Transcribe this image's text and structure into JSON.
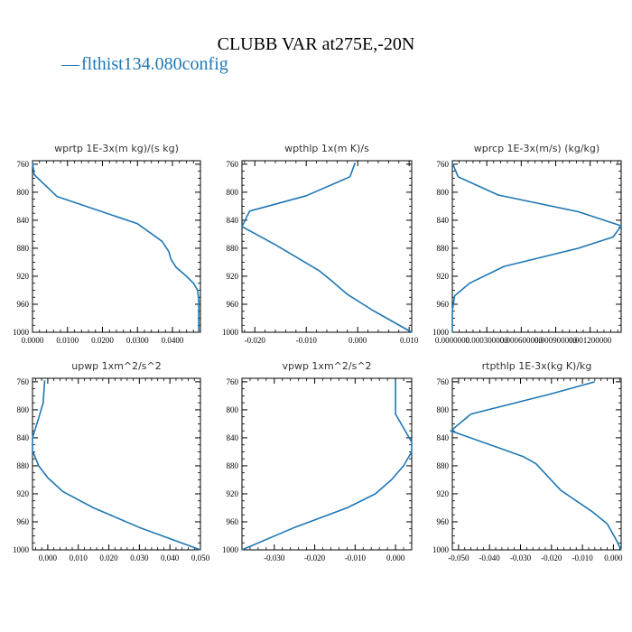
{
  "title": "CLUBB VAR at275E,-20N",
  "legend": {
    "label": "flthist134.080config",
    "marker": "—",
    "color": "#1f77b4"
  },
  "chart_data": [
    {
      "type": "line",
      "title": "wprtp   1E-3x(m kg)/(s kg)",
      "xlim": [
        0.0,
        0.048
      ],
      "ylim": [
        1000,
        755
      ],
      "xticks": [
        0.0,
        0.01,
        0.02,
        0.03,
        0.04
      ],
      "xtick_labels": [
        "0.0000",
        "0.0100",
        "0.0200",
        "0.0300",
        "0.0400"
      ],
      "yticks": [
        760,
        800,
        840,
        880,
        920,
        960,
        1000
      ],
      "series": [
        {
          "x": [
            0.0,
            0.0005,
            0.007,
            0.03,
            0.037,
            0.039,
            0.0395,
            0.041,
            0.044,
            0.046,
            0.0472,
            0.0475,
            0.0475,
            0.0475
          ],
          "y": [
            758,
            775,
            806,
            845,
            870,
            885,
            895,
            907,
            920,
            930,
            940,
            955,
            980,
            1000
          ]
        }
      ]
    },
    {
      "type": "line",
      "title": "wpthlp   1x(m K)/s",
      "xlim": [
        -0.0225,
        0.0105
      ],
      "ylim": [
        1000,
        755
      ],
      "xticks": [
        -0.02,
        -0.01,
        0.0,
        0.01
      ],
      "xtick_labels": [
        "-0.020",
        "-0.010",
        "0.000",
        "0.010"
      ],
      "yticks": [
        760,
        800,
        840,
        880,
        920,
        960,
        1000
      ],
      "series": [
        {
          "x": [
            -0.0005,
            -0.0015,
            -0.01,
            -0.021,
            -0.0225,
            -0.016,
            -0.0075,
            -0.005,
            -0.002,
            0.003,
            0.0105
          ],
          "y": [
            758,
            778,
            805,
            827,
            849,
            875,
            912,
            927,
            946,
            969,
            1000
          ]
        }
      ]
    },
    {
      "type": "line",
      "title": "wprcp   1E-3x(m/s) (kg/kg)",
      "xlim": [
        0.0,
        0.00147
      ],
      "ylim": [
        1000,
        755
      ],
      "xticks": [
        0.0,
        0.0003,
        0.0006,
        0.0009,
        0.0012
      ],
      "xtick_labels": [
        "0.0000000",
        "0.000300000",
        "0.000600000",
        "0.000900000",
        "0.001200000"
      ],
      "yticks": [
        760,
        800,
        840,
        880,
        920,
        960,
        1000
      ],
      "series": [
        {
          "x": [
            0.0,
            5e-05,
            0.0004,
            0.0011,
            0.00147,
            0.0014,
            0.0011,
            0.00045,
            0.00015,
            2e-05,
            0.0,
            0.0
          ],
          "y": [
            758,
            778,
            804,
            828,
            848,
            864,
            880,
            906,
            930,
            948,
            970,
            1000
          ]
        }
      ]
    },
    {
      "type": "line",
      "title": "upwp   1xm^2/s^2",
      "xlim": [
        -0.005,
        0.05
      ],
      "ylim": [
        1000,
        755
      ],
      "xticks": [
        0.0,
        0.01,
        0.02,
        0.03,
        0.04,
        0.05
      ],
      "xtick_labels": [
        "0.000",
        "0.010",
        "0.020",
        "0.030",
        "0.040",
        "0.050"
      ],
      "yticks": [
        760,
        800,
        840,
        880,
        920,
        960,
        1000
      ],
      "series": [
        {
          "x": [
            -0.001,
            -0.0015,
            -0.003,
            -0.005,
            -0.005,
            -0.003,
            0.0,
            0.005,
            0.015,
            0.03,
            0.05
          ],
          "y": [
            758,
            790,
            812,
            840,
            858,
            880,
            897,
            917,
            940,
            968,
            1000
          ]
        }
      ]
    },
    {
      "type": "line",
      "title": "vpwp   1xm^2/s^2",
      "xlim": [
        -0.038,
        0.004
      ],
      "ylim": [
        1000,
        755
      ],
      "xticks": [
        -0.03,
        -0.02,
        -0.01,
        0.0
      ],
      "xtick_labels": [
        "-0.030",
        "-0.020",
        "-0.010",
        "0.000"
      ],
      "yticks": [
        760,
        800,
        840,
        880,
        920,
        960,
        1000
      ],
      "series": [
        {
          "x": [
            0.0,
            0.0,
            0.002,
            0.004,
            0.004,
            0.002,
            -0.001,
            -0.005,
            -0.012,
            -0.025,
            -0.038
          ],
          "y": [
            758,
            806,
            826,
            846,
            860,
            880,
            900,
            920,
            940,
            968,
            1000
          ]
        }
      ]
    },
    {
      "type": "line",
      "title": "rtpthlp   1E-3x(kg K)/kg",
      "xlim": [
        -0.052,
        0.0025
      ],
      "ylim": [
        1000,
        755
      ],
      "xticks": [
        -0.05,
        -0.04,
        -0.03,
        -0.02,
        -0.01,
        0.0
      ],
      "xtick_labels": [
        "-0.050",
        "-0.040",
        "-0.030",
        "-0.020",
        "-0.010",
        "0.000"
      ],
      "yticks": [
        760,
        800,
        840,
        880,
        920,
        960,
        1000
      ],
      "series": [
        {
          "x": [
            -0.006,
            -0.02,
            -0.046,
            -0.0525,
            -0.036,
            -0.029,
            -0.025,
            -0.017,
            -0.007,
            -0.002,
            0.0008,
            0.0025
          ],
          "y": [
            760,
            777,
            806,
            830,
            856,
            867,
            877,
            915,
            945,
            963,
            985,
            1000
          ]
        }
      ]
    }
  ]
}
